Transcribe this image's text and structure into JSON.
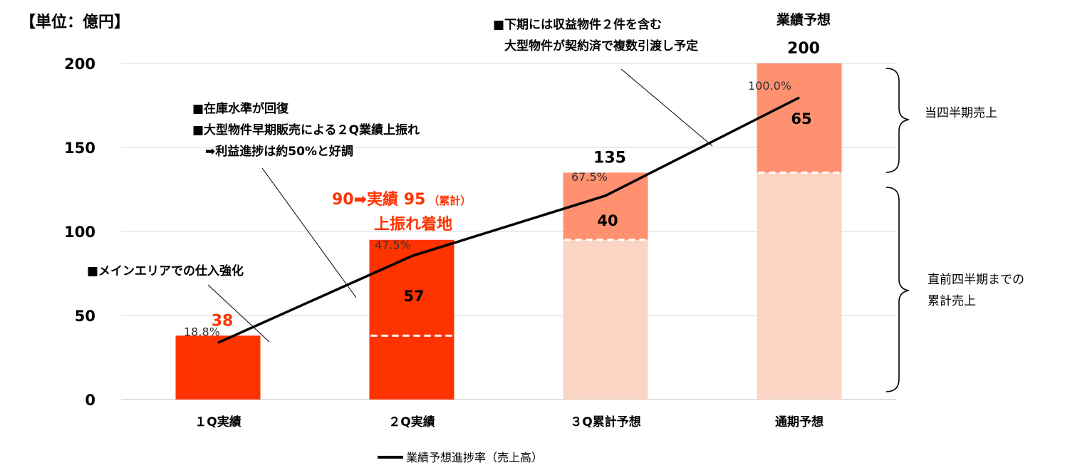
{
  "chart_data": {
    "type": "bar",
    "unit_label": "【単位：億円】",
    "ylim": [
      0,
      200
    ],
    "yticks": [
      "0",
      "50",
      "100",
      "150",
      "200"
    ],
    "categories": [
      "１Q実績",
      "２Q実績",
      "３Q累計予想",
      "通期予想"
    ],
    "series": [
      {
        "key": "prior",
        "values": [
          0,
          38,
          95,
          135
        ]
      },
      {
        "key": "quarter",
        "values": [
          38,
          57,
          40,
          65
        ]
      }
    ],
    "segment_labels": [
      "",
      "57",
      "40",
      "65"
    ],
    "totals": [
      "38",
      "",
      "135",
      "200"
    ],
    "total_header": "業績予想",
    "progress_series": {
      "name": "業績予想進捗率（売上高）",
      "values": [
        18.8,
        47.5,
        67.5,
        100.0
      ],
      "labels": [
        "18.8%",
        "47.5%",
        "67.5%",
        "100.0%"
      ]
    },
    "annotations": {
      "q1": "■メインエリアでの仕入強化",
      "q2_line1": "■在庫水準が回復",
      "q2_line2": "■大型物件早期販売による２Q業績上振れ",
      "q2_line3": "➡利益進捗は約50%と好調",
      "q2_red_main": "90➡実績 95",
      "q2_red_small": "（累計）",
      "q2_red_line2": "上振れ着地",
      "fy_line1": "■下期には収益物件２件を含む",
      "fy_line2": "大型物件が契約済で複数引渡し予定"
    },
    "brace_labels": {
      "upper": "当四半期売上",
      "lower_line1": "直前四半期までの",
      "lower_line2": "累計売上"
    },
    "colors": {
      "actual": "#ff3300",
      "forecast_quarter": "#ff9070",
      "forecast_prior": "#fbd5c3",
      "line": "#000000",
      "red_text": "#ff3300"
    }
  }
}
